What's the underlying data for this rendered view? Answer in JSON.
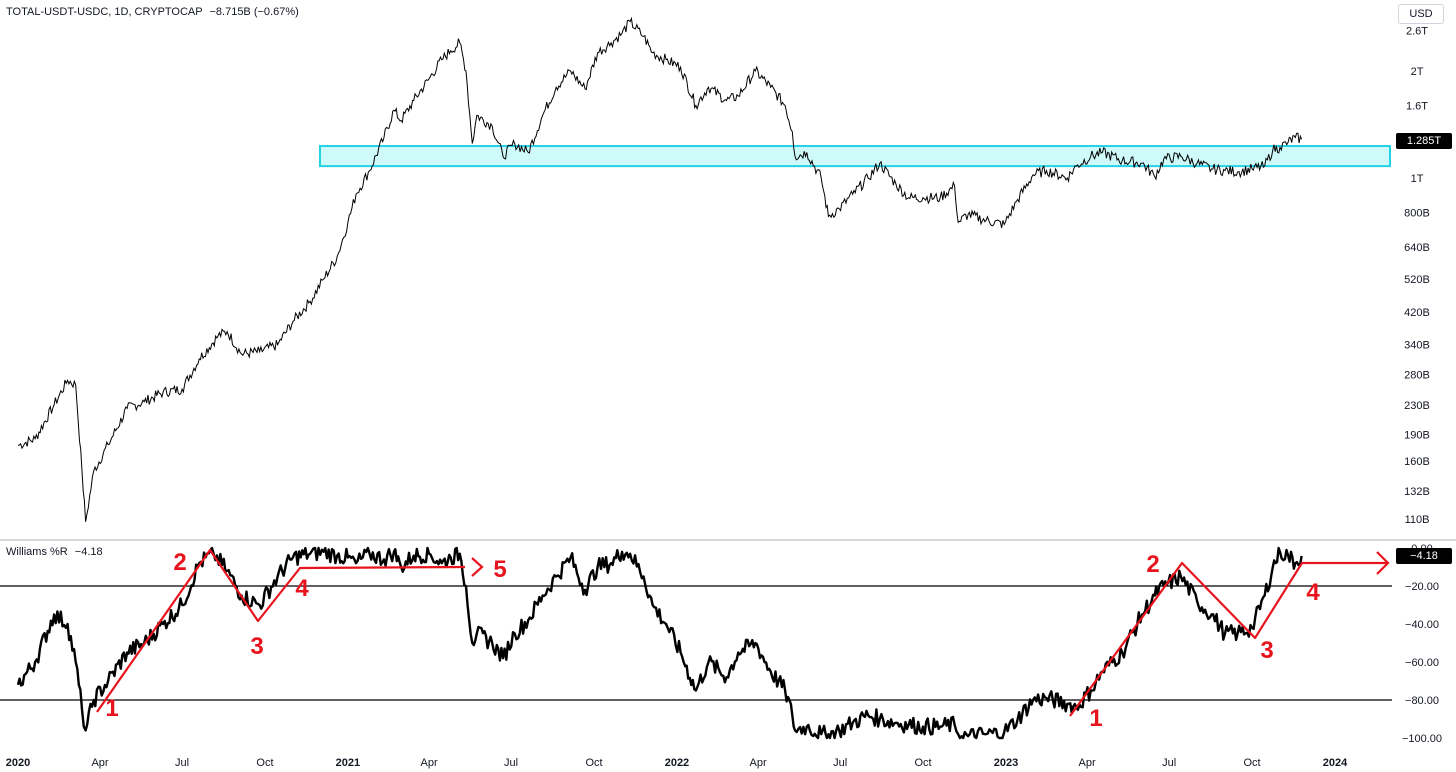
{
  "header": {
    "symbol_line": "TOTAL-USDT-USDC, 1D, CRYPTOCAP",
    "change": "−8.715B (−0.67%)",
    "currency": "USD"
  },
  "indicator": {
    "name": "Williams %R",
    "value": "−4.18"
  },
  "price_current_label": "1.285T",
  "colors": {
    "line": "#000000",
    "zone_fill": "#cffafa",
    "zone_stroke": "#22d3e6",
    "annotation": "#e8141d",
    "grid": "#000000"
  },
  "chart_data": [
    {
      "type": "line",
      "title": "TOTAL-USDT-USDC, 1D, CRYPTOCAP",
      "y_scale": "log",
      "ylim": [
        100000000000,
        2950000000000
      ],
      "x_ticks": [
        "2020",
        "Apr",
        "Jul",
        "Oct",
        "2021",
        "Apr",
        "Jul",
        "Oct",
        "2022",
        "Apr",
        "Jul",
        "Oct",
        "2023",
        "Apr",
        "Jul",
        "Oct",
        "2024"
      ],
      "y_ticks": [
        "2.6T",
        "2T",
        "1.6T",
        "1T",
        "800B",
        "640B",
        "520B",
        "420B",
        "340B",
        "280B",
        "230B",
        "190B",
        "160B",
        "132B",
        "110B"
      ],
      "highlight_zone": {
        "from": 1080000000000,
        "to": 1230000000000
      },
      "series": [
        {
          "x": [
            "2020-01-01",
            "2020-01-20",
            "2020-02-10",
            "2020-02-25",
            "2020-03-05",
            "2020-03-12",
            "2020-03-16",
            "2020-03-25",
            "2020-04-10",
            "2020-05-01",
            "2020-05-20",
            "2020-06-10",
            "2020-07-01",
            "2020-07-20",
            "2020-08-10",
            "2020-08-20",
            "2020-09-05",
            "2020-09-25",
            "2020-10-15",
            "2020-11-01",
            "2020-11-20",
            "2020-12-05",
            "2020-12-20",
            "2021-01-01",
            "2021-01-10",
            "2021-01-25",
            "2021-02-10",
            "2021-02-21",
            "2021-03-01",
            "2021-03-15",
            "2021-04-01",
            "2021-04-15",
            "2021-04-25",
            "2021-05-05",
            "2021-05-12",
            "2021-05-19",
            "2021-05-24",
            "2021-06-10",
            "2021-06-22",
            "2021-07-05",
            "2021-07-20",
            "2021-08-05",
            "2021-08-20",
            "2021-09-05",
            "2021-09-21",
            "2021-10-05",
            "2021-10-20",
            "2021-11-01",
            "2021-11-10",
            "2021-11-25",
            "2021-12-05",
            "2021-12-20",
            "2022-01-05",
            "2022-01-22",
            "2022-02-05",
            "2022-02-25",
            "2022-03-10",
            "2022-03-29",
            "2022-04-15",
            "2022-05-01",
            "2022-05-09",
            "2022-05-12",
            "2022-05-25",
            "2022-06-10",
            "2022-06-18",
            "2022-06-30",
            "2022-07-15",
            "2022-08-01",
            "2022-08-14",
            "2022-09-01",
            "2022-09-15",
            "2022-10-01",
            "2022-10-20",
            "2022-11-05",
            "2022-11-09",
            "2022-11-20",
            "2022-12-10",
            "2022-12-30",
            "2023-01-14",
            "2023-01-31",
            "2023-02-15",
            "2023-03-10",
            "2023-03-20",
            "2023-04-05",
            "2023-04-18",
            "2023-05-10",
            "2023-06-01",
            "2023-06-15",
            "2023-06-25",
            "2023-07-14",
            "2023-08-01",
            "2023-08-17",
            "2023-09-01",
            "2023-09-15",
            "2023-10-01",
            "2023-10-15",
            "2023-10-24",
            "2023-11-01",
            "2023-11-10",
            "2023-11-18",
            "2023-11-25"
          ],
          "values": [
            177000000000.0,
            185000000000.0,
            230000000000.0,
            270000000000.0,
            262000000000.0,
            150000000000.0,
            108000000000.0,
            150000000000.0,
            178000000000.0,
            225000000000.0,
            235000000000.0,
            250000000000.0,
            255000000000.0,
            310000000000.0,
            360000000000.0,
            370000000000.0,
            320000000000.0,
            325000000000.0,
            340000000000.0,
            395000000000.0,
            450000000000.0,
            520000000000.0,
            600000000000.0,
            750000000000.0,
            900000000000.0,
            1050000000000.0,
            1300000000000.0,
            1550000000000.0,
            1450000000000.0,
            1650000000000.0,
            1900000000000.0,
            2150000000000.0,
            2280000000000.0,
            2400000000000.0,
            2000000000000.0,
            1250000000000.0,
            1500000000000.0,
            1400000000000.0,
            1150000000000.0,
            1250000000000.0,
            1180000000000.0,
            1500000000000.0,
            1800000000000.0,
            2000000000000.0,
            1780000000000.0,
            2250000000000.0,
            2400000000000.0,
            2550000000000.0,
            2750000000000.0,
            2500000000000.0,
            2250000000000.0,
            2150000000000.0,
            2050000000000.0,
            1600000000000.0,
            1800000000000.0,
            1650000000000.0,
            1700000000000.0,
            2000000000000.0,
            1800000000000.0,
            1600000000000.0,
            1350000000000.0,
            1150000000000.0,
            1180000000000.0,
            1000000000000.0,
            780000000000.0,
            820000000000.0,
            900000000000.0,
            1000000000000.0,
            1100000000000.0,
            960000000000.0,
            880000000000.0,
            880000000000.0,
            880000000000.0,
            950000000000.0,
            750000000000.0,
            790000000000.0,
            760000000000.0,
            740000000000.0,
            870000000000.0,
            1020000000000.0,
            1050000000000.0,
            1000000000000.0,
            1080000000000.0,
            1150000000000.0,
            1180000000000.0,
            1120000000000.0,
            1100000000000.0,
            1010000000000.0,
            1130000000000.0,
            1150000000000.0,
            1100000000000.0,
            1060000000000.0,
            1050000000000.0,
            1040000000000.0,
            1060000000000.0,
            1080000000000.0,
            1200000000000.0,
            1220000000000.0,
            1260000000000.0,
            1300000000000.0,
            1285000000000.0
          ]
        }
      ]
    },
    {
      "type": "line",
      "title": "Williams %R",
      "ylim": [
        -100,
        0
      ],
      "y_ticks": [
        "0.00",
        "−20.00",
        "−40.00",
        "−60.00",
        "−80.00",
        "−100.00"
      ],
      "reference_lines": [
        -20,
        -80
      ],
      "series": [
        {
          "x": [
            "2020-01-01",
            "2020-01-20",
            "2020-02-10",
            "2020-02-25",
            "2020-03-05",
            "2020-03-12",
            "2020-03-16",
            "2020-03-25",
            "2020-04-10",
            "2020-05-01",
            "2020-05-20",
            "2020-06-10",
            "2020-07-01",
            "2020-07-20",
            "2020-08-05",
            "2020-08-20",
            "2020-09-05",
            "2020-09-25",
            "2020-10-15",
            "2020-11-01",
            "2020-11-20",
            "2020-12-05",
            "2020-12-20",
            "2021-01-01",
            "2021-01-10",
            "2021-01-25",
            "2021-02-10",
            "2021-02-21",
            "2021-03-01",
            "2021-03-15",
            "2021-04-01",
            "2021-04-15",
            "2021-04-25",
            "2021-05-05",
            "2021-05-12",
            "2021-05-19",
            "2021-05-24",
            "2021-06-10",
            "2021-06-22",
            "2021-07-05",
            "2021-07-20",
            "2021-08-05",
            "2021-08-20",
            "2021-09-05",
            "2021-09-21",
            "2021-10-05",
            "2021-10-20",
            "2021-11-01",
            "2021-11-10",
            "2021-11-25",
            "2021-12-05",
            "2021-12-20",
            "2022-01-05",
            "2022-01-22",
            "2022-02-05",
            "2022-02-25",
            "2022-03-10",
            "2022-03-29",
            "2022-04-15",
            "2022-05-01",
            "2022-05-09",
            "2022-05-12",
            "2022-05-25",
            "2022-06-10",
            "2022-06-18",
            "2022-06-30",
            "2022-07-15",
            "2022-08-01",
            "2022-08-14",
            "2022-09-01",
            "2022-09-15",
            "2022-10-01",
            "2022-10-20",
            "2022-11-05",
            "2022-11-09",
            "2022-11-20",
            "2022-12-10",
            "2022-12-30",
            "2023-01-14",
            "2023-01-31",
            "2023-02-15",
            "2023-03-10",
            "2023-03-20",
            "2023-04-05",
            "2023-04-18",
            "2023-05-10",
            "2023-06-01",
            "2023-06-15",
            "2023-06-25",
            "2023-07-14",
            "2023-08-01",
            "2023-08-17",
            "2023-09-01",
            "2023-09-15",
            "2023-10-01",
            "2023-10-15",
            "2023-10-24",
            "2023-11-01",
            "2023-11-10",
            "2023-11-18",
            "2023-11-25"
          ],
          "values": [
            -72,
            -60,
            -35,
            -40,
            -60,
            -85,
            -96,
            -80,
            -70,
            -55,
            -50,
            -40,
            -30,
            -8,
            -3,
            -12,
            -25,
            -30,
            -15,
            -5,
            -3,
            -2,
            -4,
            -5,
            -8,
            -3,
            -6,
            -2,
            -10,
            -4,
            -3,
            -8,
            -5,
            -3,
            -20,
            -50,
            -45,
            -50,
            -58,
            -45,
            -38,
            -25,
            -15,
            -5,
            -22,
            -10,
            -8,
            -2,
            -3,
            -15,
            -30,
            -40,
            -55,
            -75,
            -60,
            -68,
            -55,
            -50,
            -65,
            -75,
            -88,
            -96,
            -94,
            -98,
            -98,
            -96,
            -92,
            -88,
            -90,
            -92,
            -93,
            -94,
            -94,
            -93,
            -98,
            -99,
            -98,
            -97,
            -90,
            -80,
            -79,
            -82,
            -84,
            -75,
            -65,
            -55,
            -35,
            -25,
            -20,
            -15,
            -28,
            -35,
            -45,
            -45,
            -42,
            -25,
            -10,
            -2,
            -4,
            -8,
            -4.18
          ]
        }
      ]
    }
  ],
  "annotations": {
    "wave_labels": [
      "1",
      "2",
      "3",
      "4",
      "5",
      "1",
      "2",
      "3",
      "4"
    ]
  }
}
